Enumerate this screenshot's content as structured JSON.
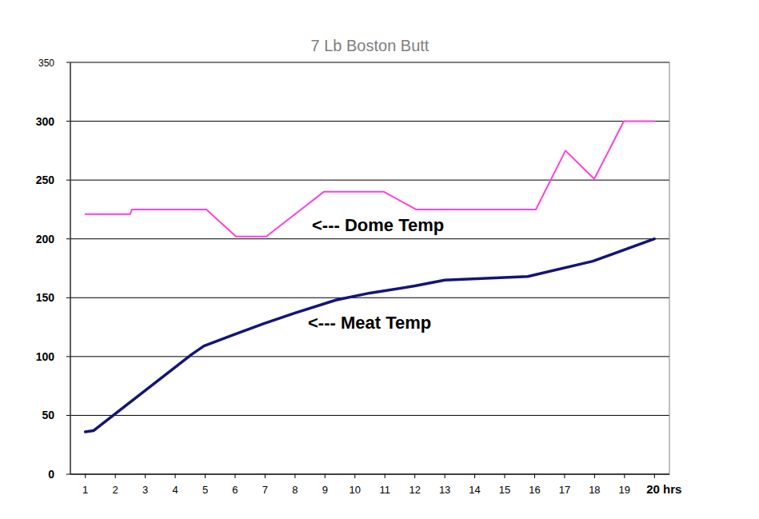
{
  "chart_data": {
    "type": "line",
    "title": "7 Lb Boston Butt",
    "xlim": [
      0.5,
      20.5
    ],
    "xticks": [
      1,
      2,
      3,
      4,
      5,
      6,
      7,
      8,
      9,
      10,
      11,
      12,
      13,
      14,
      15,
      16,
      17,
      18,
      19,
      {
        "value": 20,
        "label": "20 hrs"
      }
    ],
    "ylim": [
      0,
      350
    ],
    "yticks": [
      0,
      50,
      100,
      150,
      200,
      250,
      300,
      350
    ],
    "grid": true,
    "annotations": [
      "<--- Dome Temp",
      "<--- Meat Temp"
    ],
    "series": [
      {
        "color": "#ff40d9",
        "x": [
          1.0,
          2.5,
          2.55,
          5.04,
          6.03,
          7.04,
          8.96,
          10.97,
          12.04,
          16.04,
          17.03,
          17.99,
          18.98,
          20.0
        ],
        "values": [
          221,
          221,
          225,
          225,
          202,
          202,
          240,
          240,
          225,
          225,
          275,
          251,
          300,
          300
        ]
      },
      {
        "color": "#14147a",
        "x": [
          1.0,
          1.27,
          4.56,
          4.96,
          6.0,
          6.96,
          8.0,
          9.36,
          10.5,
          12.0,
          13.0,
          15.77,
          17.94,
          20.0
        ],
        "values": [
          36,
          37,
          102,
          109,
          119,
          128,
          137,
          148,
          154,
          160,
          165,
          168,
          181,
          200
        ]
      }
    ]
  }
}
